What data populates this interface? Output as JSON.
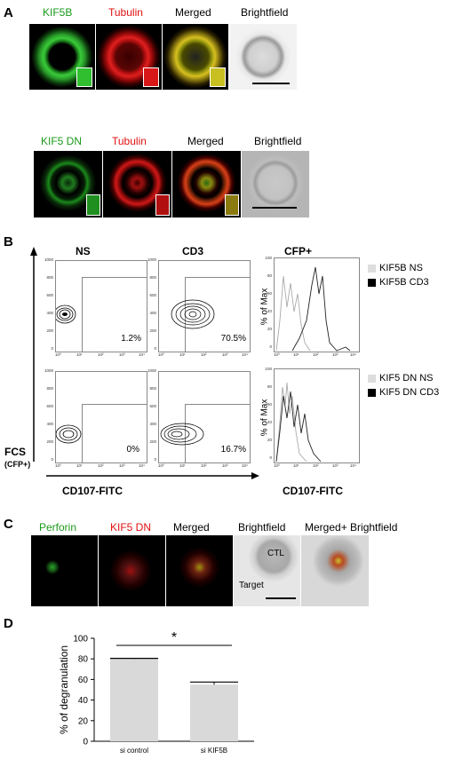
{
  "panels": {
    "a": "A",
    "b": "B",
    "c": "C",
    "d": "D"
  },
  "panel_a": {
    "row1": [
      "KIF5B",
      "Tubulin",
      "Merged",
      "Brightfield"
    ],
    "row2": [
      "KIF5 DN",
      "Tubulin",
      "Merged",
      "Brightfield"
    ]
  },
  "panel_b": {
    "col_headers": [
      "NS",
      "CD3",
      "CFP+"
    ],
    "percents": [
      "1.2%",
      "70.5%",
      "0%",
      "16.7%"
    ],
    "y_ticks": [
      "1000",
      "800",
      "600",
      "400",
      "200",
      "0"
    ],
    "x_ticks": [
      "10⁰",
      "10¹",
      "10²",
      "10³",
      "10⁴"
    ],
    "hist_ylabel": "% of Max",
    "hist_y_ticks": [
      "100",
      "80",
      "60",
      "40",
      "20",
      "0"
    ],
    "y_axis_label": "FCS",
    "y_axis_sub": "(CFP+)",
    "x_axis_label_left": "CD107-FITC",
    "x_axis_label_right": "CD107-FITC",
    "legend_top": [
      "KIF5B NS",
      "KIF5B CD3"
    ],
    "legend_bottom": [
      "KIF5 DN NS",
      "KIF5 DN CD3"
    ]
  },
  "panel_c": {
    "labels": [
      "Perforin",
      "KIF5 DN",
      "Merged",
      "Brightfield",
      "Merged+ Brightfield"
    ],
    "cell_labels": [
      "CTL",
      "Target"
    ]
  },
  "chart_data": {
    "type": "bar",
    "categories": [
      "si control",
      "si KIF5B"
    ],
    "values": [
      80,
      55
    ],
    "errors": [
      0.5,
      2.5
    ],
    "ylabel": "% of degranulation",
    "ylim": [
      0,
      100
    ],
    "yticks": [
      "0",
      "20",
      "40",
      "60",
      "80",
      "100"
    ],
    "significance": "*",
    "bar_color": "#d9d9d9"
  }
}
